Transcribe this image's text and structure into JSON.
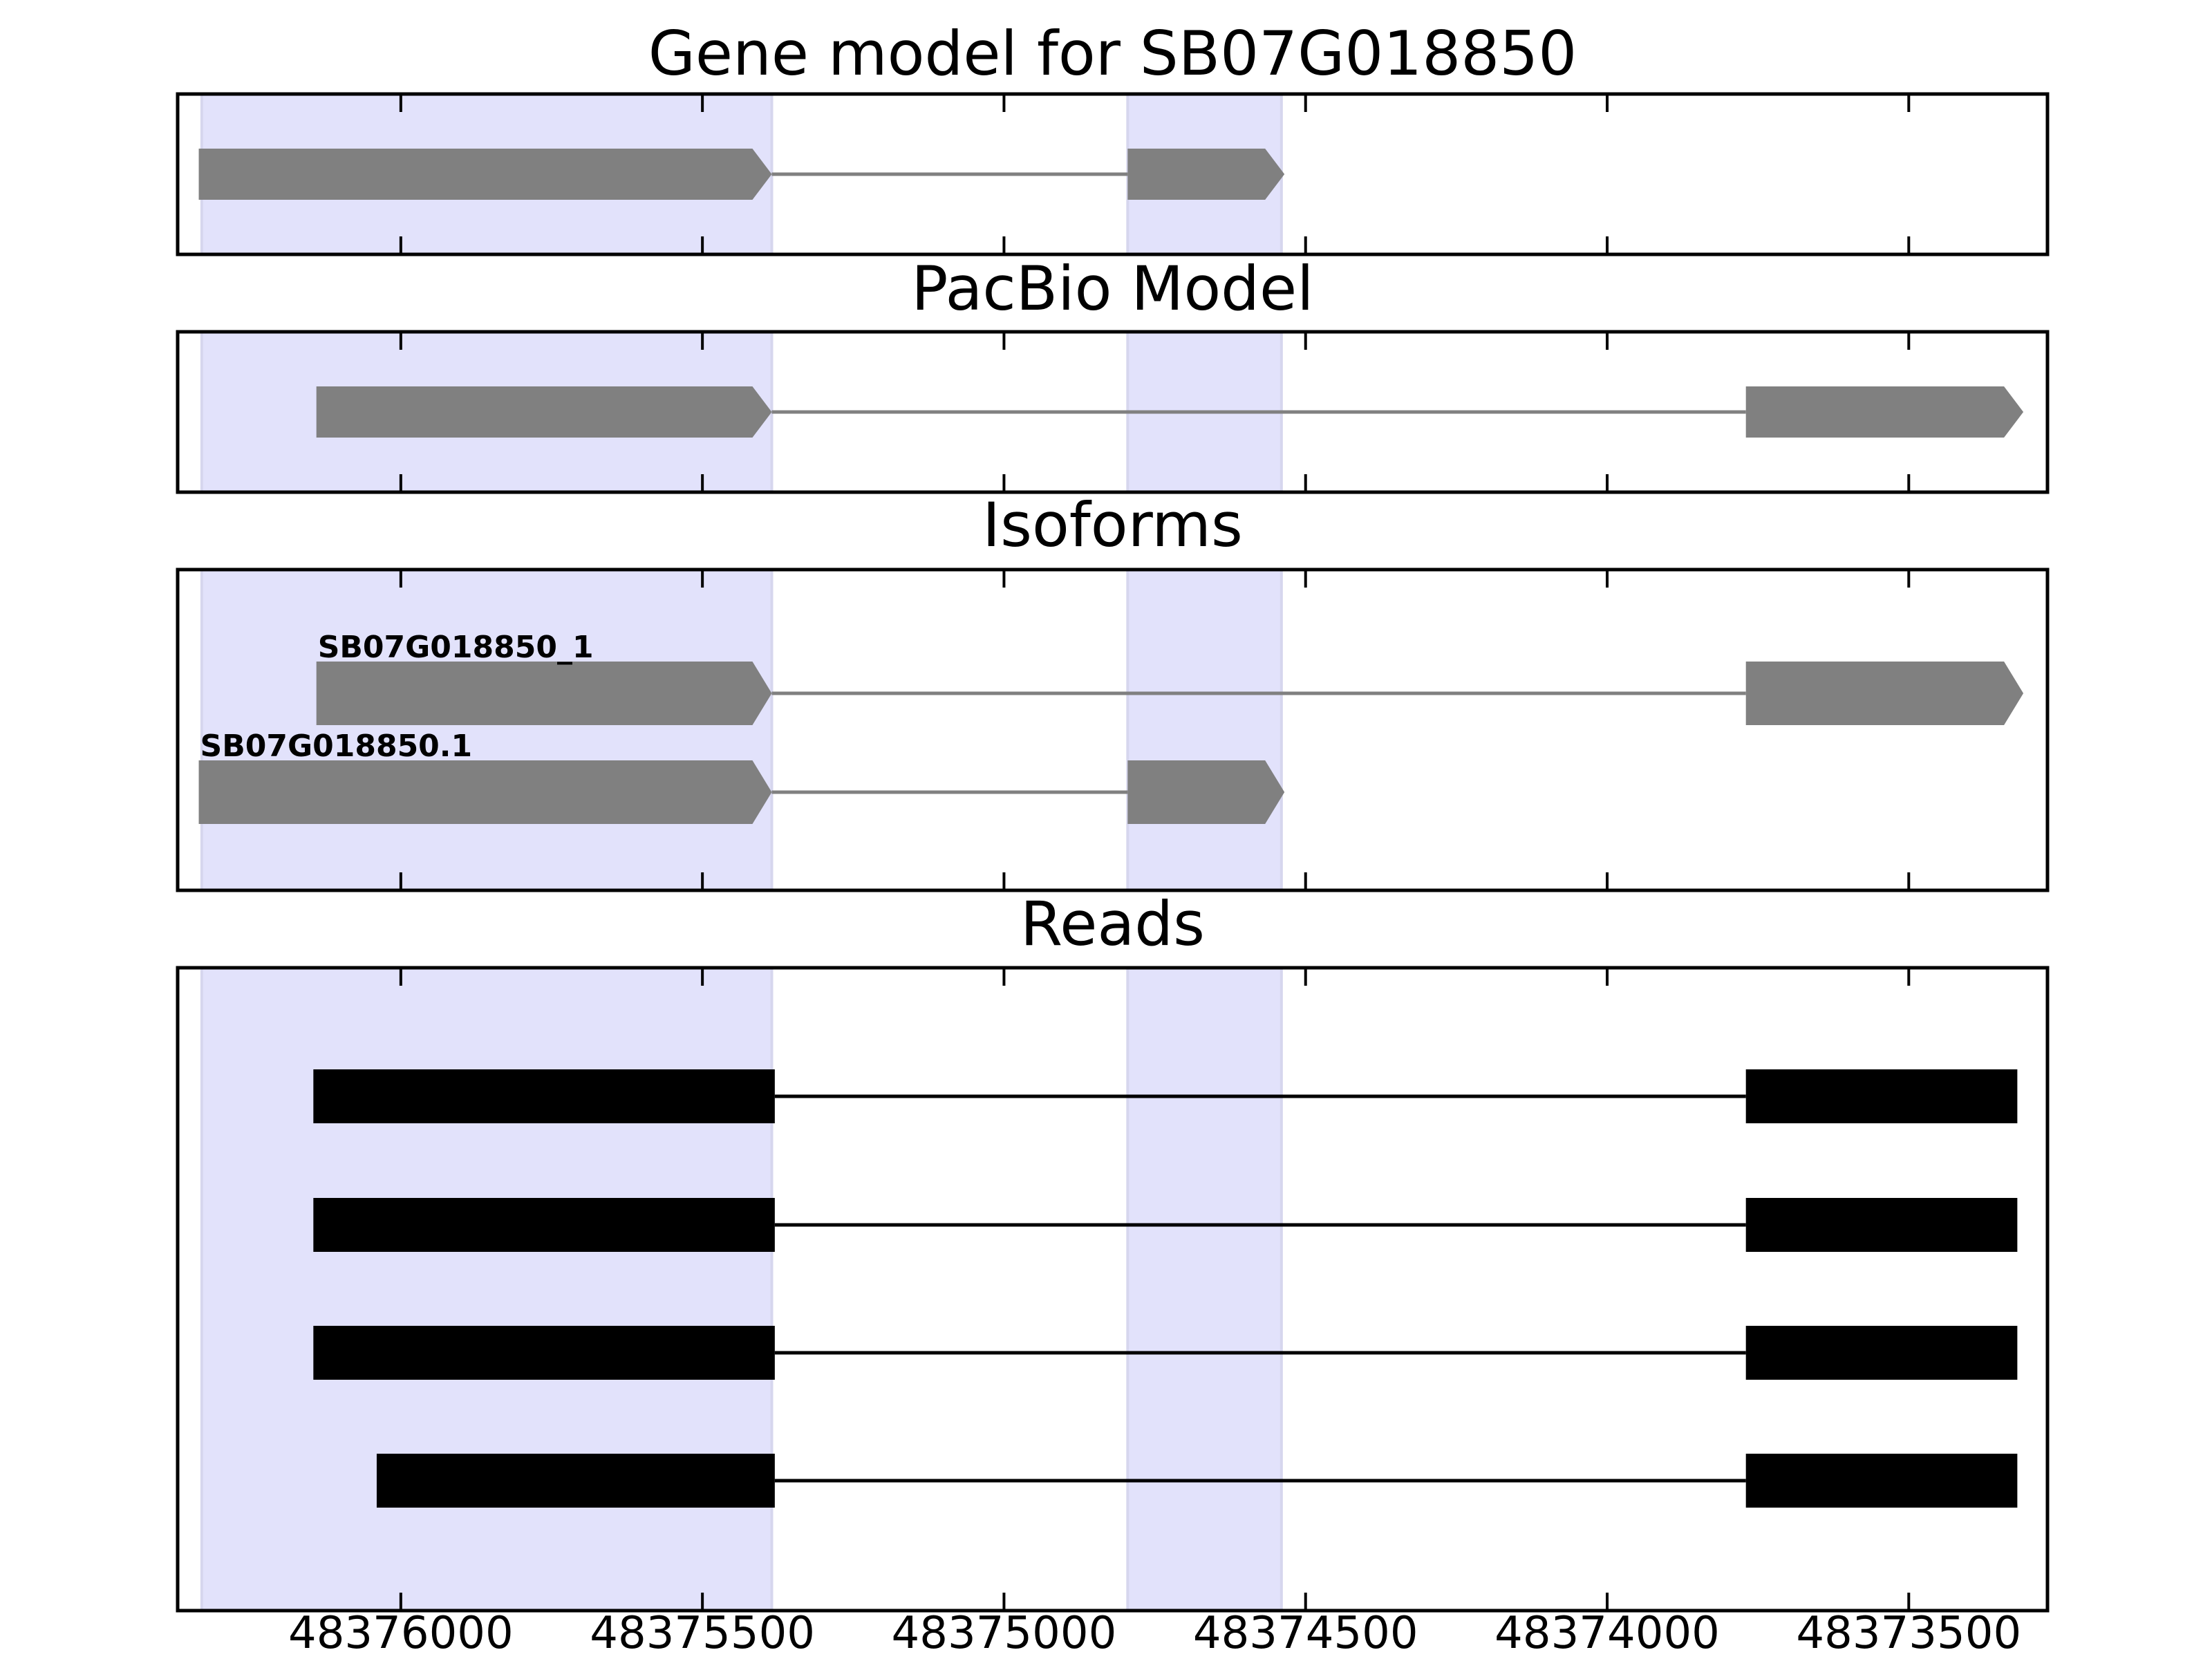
{
  "chart_data": {
    "type": "gene-structure",
    "x_axis": {
      "ticks": [
        48376000,
        48375500,
        48375000,
        48374500,
        48374000,
        48373500
      ],
      "tick_labels": [
        "48376000",
        "48375500",
        "48375000",
        "48374500",
        "48374000",
        "48373500"
      ],
      "xlim": [
        48376370,
        48373270
      ],
      "reversed": true
    },
    "highlight_regions": [
      [
        48376330,
        48375385
      ],
      [
        48374795,
        48374540
      ]
    ],
    "panels": [
      {
        "title": "Gene model for SB07G018850",
        "color": "#808080",
        "tracks": [
          {
            "label": "",
            "exons": [
              [
                48376335,
                48375385
              ],
              [
                48374795,
                48374535
              ]
            ]
          }
        ]
      },
      {
        "title": "PacBio Model",
        "color": "#808080",
        "tracks": [
          {
            "label": "",
            "exons": [
              [
                48376140,
                48375385
              ],
              [
                48373770,
                48373310
              ]
            ]
          }
        ]
      },
      {
        "title": "Isoforms",
        "color": "#808080",
        "tracks": [
          {
            "label": "SB07G018850_1",
            "exons": [
              [
                48376140,
                48375385
              ],
              [
                48373770,
                48373310
              ]
            ]
          },
          {
            "label": "SB07G018850.1",
            "exons": [
              [
                48376335,
                48375385
              ],
              [
                48374795,
                48374535
              ]
            ]
          }
        ]
      },
      {
        "title": "Reads",
        "color": "#000000",
        "tracks": [
          {
            "label": "",
            "exons": [
              [
                48376145,
                48375380
              ],
              [
                48373770,
                48373320
              ]
            ]
          },
          {
            "label": "",
            "exons": [
              [
                48376145,
                48375380
              ],
              [
                48373770,
                48373320
              ]
            ]
          },
          {
            "label": "",
            "exons": [
              [
                48376145,
                48375380
              ],
              [
                48373770,
                48373320
              ]
            ]
          },
          {
            "label": "",
            "exons": [
              [
                48376040,
                48375380
              ],
              [
                48373770,
                48373320
              ]
            ]
          }
        ]
      }
    ],
    "colors": {
      "highlight": "#e2e2fb",
      "frame": "#000000",
      "model": "#808080",
      "reads": "#000000"
    }
  }
}
